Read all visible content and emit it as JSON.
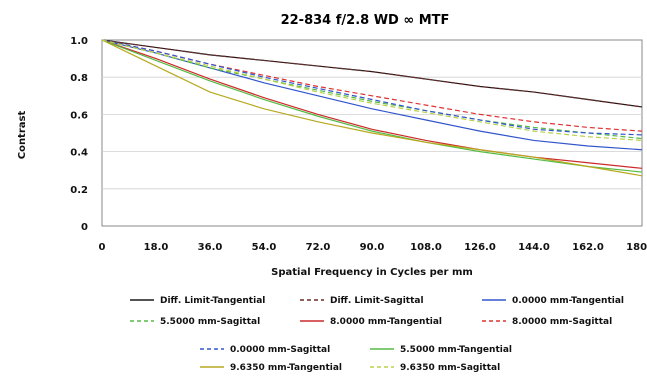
{
  "chart_data": {
    "type": "line",
    "title": "22-834 f/2.8 WD ∞ MTF",
    "xlabel": "Spatial Frequency in Cycles per mm",
    "ylabel": "Contrast",
    "xlim": [
      0,
      180
    ],
    "ylim": [
      0,
      1.0
    ],
    "x_ticks": [
      "0",
      "18.0",
      "36.0",
      "54.0",
      "72.0",
      "90.0",
      "108.0",
      "126.0",
      "144.0",
      "162.0",
      "180.0"
    ],
    "y_ticks": [
      "0",
      "0.2",
      "0.4",
      "0.6",
      "0.8",
      "1.0"
    ],
    "grid": "horizontal",
    "legend_position": "bottom",
    "x": [
      0,
      18,
      36,
      54,
      72,
      90,
      108,
      126,
      144,
      162,
      180
    ],
    "series": [
      {
        "name": "Diff. Limit-Tangential",
        "color": "#1a1a1a",
        "dash": "solid",
        "values": [
          1.0,
          0.96,
          0.92,
          0.89,
          0.86,
          0.83,
          0.79,
          0.75,
          0.72,
          0.68,
          0.64
        ]
      },
      {
        "name": "Diff. Limit-Sagittal",
        "color": "#6b2a2a",
        "dash": "dashed",
        "values": [
          1.0,
          0.96,
          0.92,
          0.89,
          0.86,
          0.83,
          0.79,
          0.75,
          0.72,
          0.68,
          0.64
        ]
      },
      {
        "name": "0.0000 mm-Tangential",
        "color": "#3355cc",
        "dash": "solid",
        "values": [
          1.0,
          0.93,
          0.85,
          0.77,
          0.7,
          0.63,
          0.57,
          0.51,
          0.46,
          0.43,
          0.41
        ]
      },
      {
        "name": "5.5000 mm-Sagittal",
        "color": "#55bb44",
        "dash": "dashed",
        "values": [
          1.0,
          0.93,
          0.85,
          0.79,
          0.73,
          0.67,
          0.62,
          0.57,
          0.53,
          0.5,
          0.47
        ]
      },
      {
        "name": "8.0000 mm-Tangential",
        "color": "#cc2a2a",
        "dash": "solid",
        "values": [
          1.0,
          0.9,
          0.79,
          0.69,
          0.6,
          0.52,
          0.46,
          0.41,
          0.37,
          0.34,
          0.31
        ]
      },
      {
        "name": "8.0000 mm-Sagittal",
        "color": "#dd3333",
        "dash": "dashed",
        "values": [
          1.0,
          0.94,
          0.87,
          0.81,
          0.75,
          0.7,
          0.65,
          0.6,
          0.56,
          0.53,
          0.51
        ]
      },
      {
        "name": "0.0000 mm-Sagittal",
        "color": "#3355cc",
        "dash": "dashed",
        "values": [
          1.0,
          0.94,
          0.87,
          0.8,
          0.74,
          0.68,
          0.62,
          0.57,
          0.52,
          0.5,
          0.49
        ]
      },
      {
        "name": "5.5000 mm-Tangential",
        "color": "#55bb44",
        "dash": "solid",
        "values": [
          1.0,
          0.89,
          0.78,
          0.68,
          0.59,
          0.51,
          0.45,
          0.4,
          0.36,
          0.32,
          0.29
        ]
      },
      {
        "name": "9.6350 mm-Tangential",
        "color": "#b8a820",
        "dash": "solid",
        "values": [
          1.0,
          0.86,
          0.72,
          0.63,
          0.56,
          0.5,
          0.45,
          0.41,
          0.37,
          0.32,
          0.27
        ]
      },
      {
        "name": "9.6350 mm-Sagittal",
        "color": "#b8d24a",
        "dash": "dashed",
        "values": [
          1.0,
          0.93,
          0.86,
          0.79,
          0.72,
          0.66,
          0.61,
          0.56,
          0.51,
          0.48,
          0.46
        ]
      }
    ]
  }
}
